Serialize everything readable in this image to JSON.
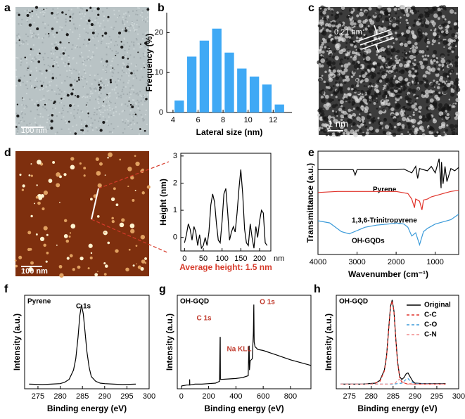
{
  "panel_labels": [
    "a",
    "b",
    "c",
    "d",
    "e",
    "f",
    "g",
    "h"
  ],
  "images": [
    {
      "scale_bar": "100 nm"
    },
    {
      "lattice": "0.21 nm",
      "scale_bar": "1 nm"
    },
    {
      "scale_bar": "100 nm"
    }
  ],
  "chart_data": [
    {
      "type": "bar",
      "xlabel": "Lateral size (nm)",
      "ylabel": "Frequency (%)",
      "color": "#3fa9f5",
      "x": [
        4.5,
        5.5,
        6.5,
        7.5,
        8.5,
        9.5,
        10.5,
        11.5,
        12.5
      ],
      "values": [
        3,
        14,
        18,
        21,
        15,
        11,
        9,
        7,
        2
      ],
      "xlim": [
        3.5,
        13.5
      ],
      "xticks": [
        4,
        6,
        8,
        10,
        12
      ],
      "ylim": [
        0,
        25
      ],
      "yticks": [
        0,
        10,
        20
      ]
    },
    {
      "type": "line",
      "xlabel": "nm",
      "ylabel": "Height (nm)",
      "annotations": [
        "Average height: 1.5 nm"
      ],
      "series": [
        {
          "color": "#000000",
          "x": [
            0,
            5,
            10,
            15,
            20,
            25,
            30,
            35,
            40,
            45,
            50,
            55,
            60,
            65,
            70,
            75,
            80,
            85,
            90,
            95,
            100,
            105,
            110,
            115,
            120,
            125,
            130,
            135,
            140,
            145,
            150,
            155,
            160,
            165,
            170,
            175,
            180,
            185,
            190,
            195,
            200,
            205,
            210,
            215,
            220
          ],
          "values": [
            -0.2,
            0.1,
            0.5,
            0.3,
            -0.1,
            0.4,
            0.2,
            -0.3,
            0.1,
            -0.4,
            -0.3,
            0,
            -0.3,
            0.2,
            1.2,
            1.6,
            1.3,
            0.5,
            -0.1,
            -0.2,
            0.6,
            1.6,
            1.8,
            0.9,
            -0.1,
            0.2,
            0.4,
            0.2,
            0.9,
            1.8,
            2.5,
            1.6,
            0.3,
            -0.2,
            -0.3,
            0.5,
            0,
            -0.4,
            0.4,
            0,
            0.6,
            1,
            0.9,
            -0.2,
            -0.3
          ]
        }
      ],
      "xlim": [
        -10,
        230
      ],
      "xticks": [
        0,
        50,
        100,
        150,
        200
      ],
      "ylim": [
        -0.5,
        3.1
      ],
      "yticks": [
        0,
        1,
        2,
        3
      ]
    },
    {
      "type": "line",
      "xlabel": "Wavenumber (cm⁻¹)",
      "ylabel": "Transmittance (a.u.)",
      "series": [
        {
          "name": "Pyrene",
          "color": "#000000",
          "x": [
            4000,
            3500,
            3100,
            3050,
            3000,
            2500,
            2000,
            1800,
            1600,
            1500,
            1450,
            1400,
            1200,
            1100,
            1000,
            900,
            850,
            840,
            800,
            750,
            700,
            600,
            500,
            400
          ],
          "values": [
            8.3,
            8.3,
            8.3,
            7.8,
            8.3,
            8.3,
            8.3,
            8.35,
            8.0,
            8.6,
            7.5,
            8.4,
            8.2,
            8.6,
            8.0,
            9.3,
            6.6,
            9.0,
            7.0,
            8.6,
            7.2,
            8.4,
            8.2,
            8.5
          ]
        },
        {
          "name": "1,3,6-Trinitropyrene",
          "color": "#e0322a",
          "x": [
            4000,
            3500,
            3000,
            2500,
            2000,
            1700,
            1600,
            1530,
            1500,
            1400,
            1340,
            1300,
            1200,
            1100,
            1000,
            900,
            800,
            700,
            600,
            400
          ],
          "values": [
            6.2,
            6.3,
            6.3,
            6.3,
            6.3,
            6.1,
            5.6,
            4.8,
            5.6,
            5.4,
            4.6,
            5.5,
            5.6,
            5.8,
            5.9,
            6.0,
            6.1,
            6.2,
            6.3,
            6.4
          ]
        },
        {
          "name": "OH-GQDs",
          "color": "#3a9ad9",
          "x": [
            4000,
            3700,
            3400,
            3200,
            3000,
            2800,
            2500,
            2200,
            2000,
            1800,
            1700,
            1600,
            1500,
            1400,
            1300,
            1200,
            1100,
            1000,
            800,
            600,
            400
          ],
          "values": [
            3.6,
            3.4,
            2.6,
            2.4,
            2.7,
            3.0,
            3.2,
            3.3,
            3.4,
            3.3,
            3.0,
            2.2,
            2.5,
            1.4,
            2.6,
            2.9,
            3.1,
            3.3,
            3.5,
            3.7,
            4.2
          ]
        }
      ],
      "xlim": [
        4000,
        400
      ],
      "xticks": [
        4000,
        3000,
        2000,
        1000
      ],
      "ylim": [
        0.5,
        10
      ]
    },
    {
      "type": "line",
      "title": "Pyrene",
      "xlabel": "Binding energy (eV)",
      "ylabel": "Intensity (a.u.)",
      "annotations": [
        "C 1s"
      ],
      "series": [
        {
          "color": "#000000",
          "x": [
            273,
            276,
            278,
            280,
            281,
            282,
            283,
            283.5,
            284,
            284.4,
            284.8,
            285.2,
            285.6,
            286,
            286.5,
            287,
            288,
            289,
            290,
            292,
            294,
            297
          ],
          "values": [
            0.5,
            0.45,
            0.5,
            0.55,
            0.7,
            1,
            2,
            3.2,
            5.5,
            7.8,
            9,
            8,
            6,
            4,
            2.3,
            1.3,
            0.8,
            0.6,
            0.55,
            0.5,
            0.45,
            0.5
          ]
        }
      ],
      "xlim": [
        272,
        300
      ],
      "xticks": [
        275,
        280,
        285,
        290,
        295,
        300
      ],
      "ylim": [
        0,
        10
      ]
    },
    {
      "type": "line",
      "title": "OH-GQD",
      "xlabel": "Binding energy (eV)",
      "ylabel": "Intensity (a.u.)",
      "annotations": [
        "C 1s",
        "Na KLL",
        "O 1s"
      ],
      "series": [
        {
          "color": "#000000",
          "x": [
            0,
            20,
            40,
            60,
            61,
            62,
            100,
            150,
            200,
            250,
            280,
            284,
            285,
            286,
            290,
            350,
            400,
            450,
            490,
            495,
            497,
            499,
            505,
            520,
            528,
            531,
            534,
            540,
            560,
            600,
            700,
            800,
            950
          ],
          "values": [
            0.3,
            0.35,
            0.4,
            0.4,
            1.0,
            0.4,
            0.5,
            0.5,
            0.55,
            0.6,
            0.8,
            5.5,
            5.5,
            1.0,
            1.0,
            1.05,
            1.1,
            1.2,
            1.4,
            4.4,
            4.6,
            2.0,
            3.0,
            3.2,
            6,
            9,
            5,
            4.5,
            4.2,
            4.1,
            3.6,
            3.1,
            2.5
          ]
        }
      ],
      "xlim": [
        -30,
        950
      ],
      "xticks": [
        0,
        200,
        400,
        600,
        800
      ],
      "ylim": [
        0,
        10
      ]
    },
    {
      "type": "line",
      "title": "OH-GQD",
      "xlabel": "Binding energy (eV)",
      "ylabel": "Intensity (a.u.)",
      "legend": "upper right",
      "series": [
        {
          "name": "Original",
          "color": "#000000",
          "dash": false,
          "x": [
            273,
            278,
            281,
            282,
            283,
            283.5,
            284,
            284.4,
            284.8,
            285.2,
            285.6,
            286,
            286.5,
            287,
            287.5,
            288,
            288.4,
            289,
            289.5,
            290,
            292,
            297
          ],
          "values": [
            0.5,
            0.5,
            0.6,
            0.9,
            2,
            3.5,
            6.5,
            8.8,
            9.5,
            8.3,
            5.5,
            3,
            1.3,
            1.0,
            1.2,
            1.6,
            1.7,
            1.2,
            0.8,
            0.6,
            0.55,
            0.55
          ]
        },
        {
          "name": "C-C",
          "color": "#e0322a",
          "dash": true,
          "x": [
            273,
            280,
            282,
            283,
            283.5,
            284,
            284.4,
            284.8,
            285.2,
            285.6,
            286,
            286.5,
            287,
            288,
            290,
            297
          ],
          "values": [
            0.5,
            0.5,
            0.8,
            1.9,
            3.4,
            6.4,
            8.7,
            9.4,
            8.2,
            5.4,
            2.9,
            1.2,
            0.7,
            0.55,
            0.5,
            0.5
          ]
        },
        {
          "name": "C-O",
          "color": "#3a9ad9",
          "dash": true,
          "x": [
            273,
            280,
            285,
            287,
            288,
            288.4,
            289,
            290,
            297
          ],
          "values": [
            0.5,
            0.5,
            0.5,
            0.6,
            1.0,
            1.1,
            0.8,
            0.55,
            0.5
          ]
        },
        {
          "name": "C-N",
          "color": "#f08a8a",
          "dash": true,
          "x": [
            273,
            284,
            285.5,
            286,
            286.5,
            287,
            288,
            297
          ],
          "values": [
            0.5,
            0.5,
            0.6,
            0.9,
            1.0,
            0.8,
            0.5,
            0.5
          ]
        }
      ],
      "xlim": [
        272,
        300
      ],
      "xticks": [
        275,
        280,
        285,
        290,
        295,
        300
      ],
      "ylim": [
        0,
        10
      ]
    }
  ]
}
